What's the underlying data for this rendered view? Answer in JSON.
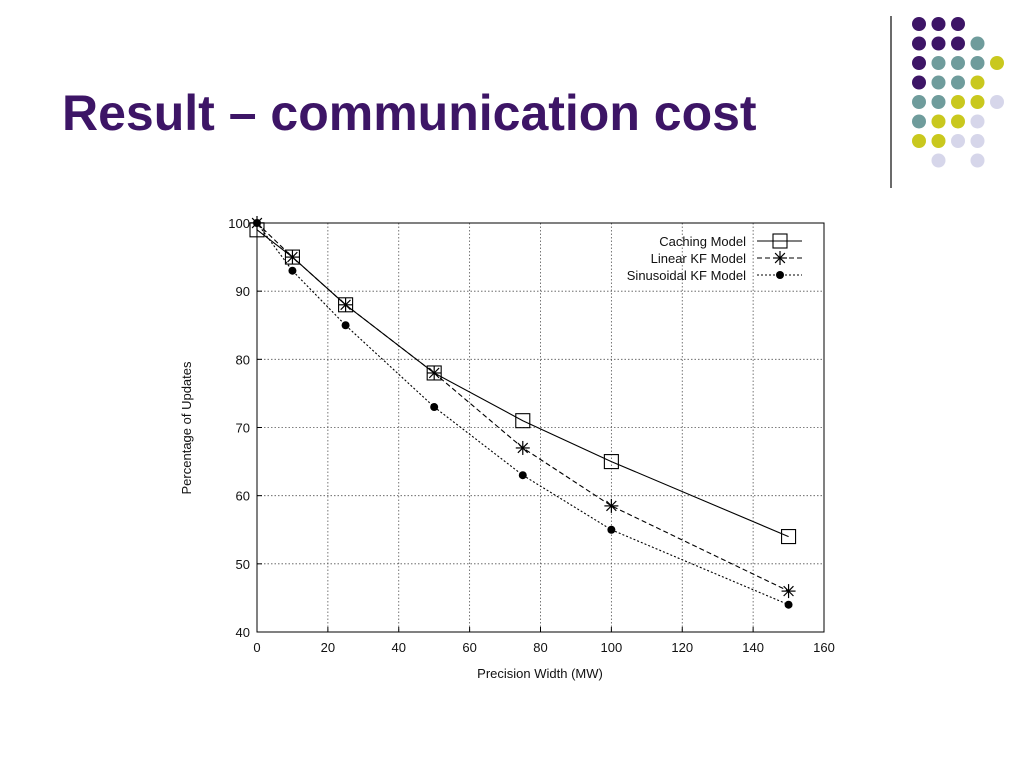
{
  "slide": {
    "title": "Result – communication cost",
    "title_color": "#3d1566",
    "dot_colors": {
      "purple": "#3d1566",
      "teal": "#6f9c9c",
      "yellow": "#c9c81e",
      "lavender": "#d6d6ea"
    }
  },
  "chart_data": {
    "type": "line",
    "title": "",
    "xlabel": "Precision Width (MW)",
    "ylabel": "Percentage of Updates",
    "xlim": [
      0,
      160
    ],
    "ylim": [
      40,
      100
    ],
    "xticks": [
      0,
      20,
      40,
      60,
      80,
      100,
      120,
      140,
      160
    ],
    "yticks": [
      40,
      50,
      60,
      70,
      80,
      90,
      100
    ],
    "grid": true,
    "legend_position": "top-right",
    "series": [
      {
        "name": "Caching Model",
        "marker": "square",
        "line": "solid",
        "x": [
          0,
          10,
          25,
          50,
          75,
          100,
          150
        ],
        "y": [
          99,
          95,
          88,
          78,
          71,
          65,
          54
        ]
      },
      {
        "name": "Linear KF Model",
        "marker": "asterisk",
        "line": "dashed",
        "x": [
          0,
          10,
          25,
          50,
          75,
          100,
          150
        ],
        "y": [
          100,
          95,
          88,
          78,
          67,
          58.5,
          46
        ]
      },
      {
        "name": "Sinusoidal KF Model",
        "marker": "dot",
        "line": "dotted",
        "x": [
          0,
          10,
          25,
          50,
          75,
          100,
          150
        ],
        "y": [
          100,
          93,
          85,
          73,
          63,
          55,
          44
        ]
      }
    ]
  }
}
